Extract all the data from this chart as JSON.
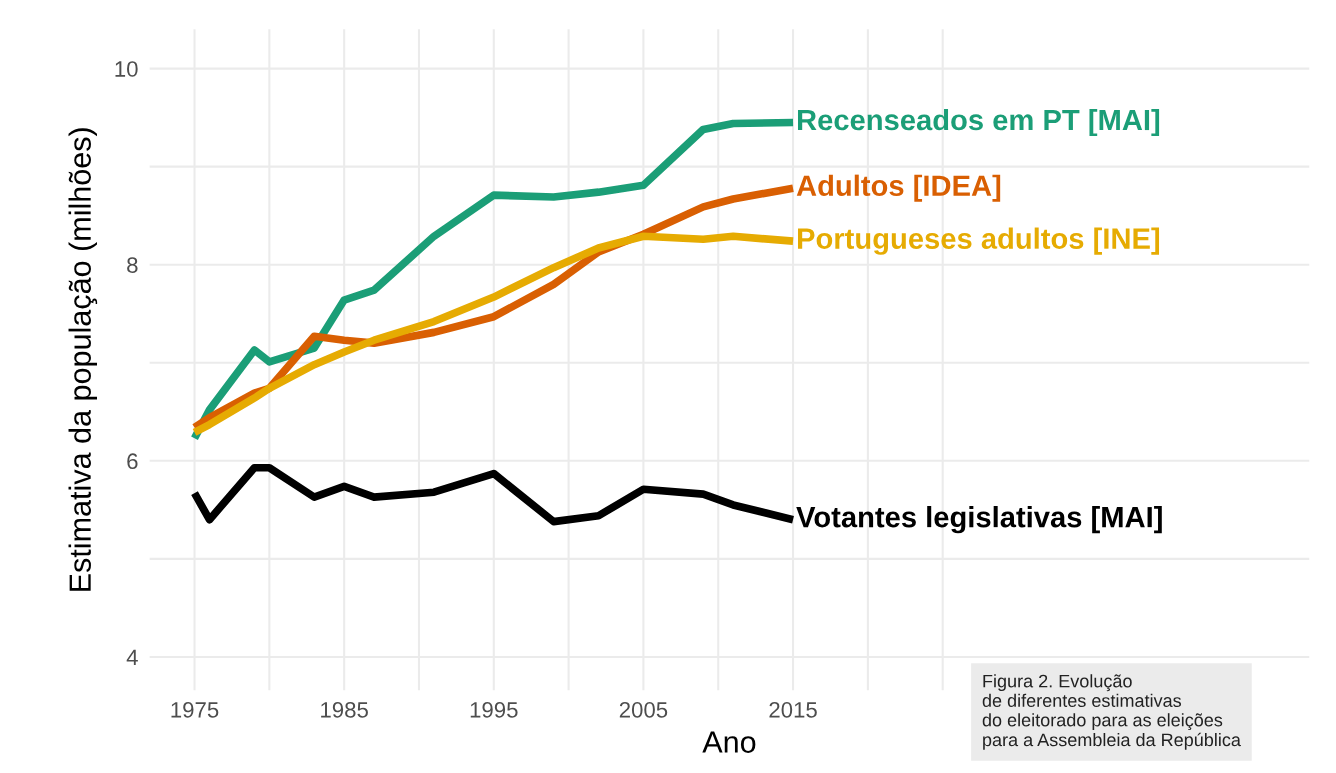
{
  "chart_data": {
    "type": "line",
    "xlabel": "Ano",
    "ylabel": "Estimativa da população (milhões)",
    "x": [
      1975,
      1976,
      1979,
      1980,
      1983,
      1985,
      1987,
      1991,
      1995,
      1999,
      2002,
      2005,
      2009,
      2011,
      2015
    ],
    "series": [
      {
        "name": "Recenseados em PT [MAI]",
        "color": "#1b9e77",
        "values": [
          6.23,
          6.52,
          7.13,
          7.01,
          7.15,
          7.64,
          7.74,
          8.29,
          8.71,
          8.69,
          8.74,
          8.81,
          9.38,
          9.44,
          9.45
        ]
      },
      {
        "name": "Adultos [IDEA]",
        "color": "#d95f02",
        "values": [
          6.34,
          6.44,
          6.69,
          6.74,
          7.27,
          7.23,
          7.2,
          7.31,
          7.47,
          7.8,
          8.13,
          8.31,
          8.59,
          8.67,
          8.78
        ]
      },
      {
        "name": "Portugueses adultos [INE]",
        "color": "#e6ab02",
        "values": [
          6.29,
          6.37,
          6.64,
          6.74,
          6.98,
          7.11,
          7.23,
          7.42,
          7.67,
          7.97,
          8.17,
          8.29,
          8.26,
          8.29,
          8.24
        ]
      },
      {
        "name": "Votantes legislativas [MAI]",
        "color": "#000000",
        "values": [
          5.67,
          5.4,
          5.93,
          5.93,
          5.63,
          5.74,
          5.63,
          5.68,
          5.87,
          5.38,
          5.44,
          5.71,
          5.66,
          5.55,
          5.4
        ]
      }
    ],
    "xlim": [
      1972,
      2049.5
    ],
    "xticks": [
      1975,
      {
        "value": 1980,
        "label": null
      },
      1985,
      {
        "value": 1990,
        "label": null
      },
      1995,
      {
        "value": 2000,
        "label": null
      },
      2005,
      {
        "value": 2010,
        "label": null
      },
      2015,
      {
        "value": 2020,
        "label": null
      },
      {
        "value": 2025,
        "label": null
      }
    ],
    "ylim": [
      3.66,
      10.4
    ],
    "yticks": [
      4,
      {
        "value": 5,
        "label": null
      },
      6,
      {
        "value": 7,
        "label": null
      },
      8,
      {
        "value": 9,
        "label": null
      },
      10
    ],
    "grid": true,
    "legend": false,
    "marker": "none",
    "line_style": "solid",
    "annotations": [
      "Figura 2. Evolução\nde diferentes estimativas\ndo eleitorado para as eleições\npara a Assembleia da República"
    ]
  }
}
